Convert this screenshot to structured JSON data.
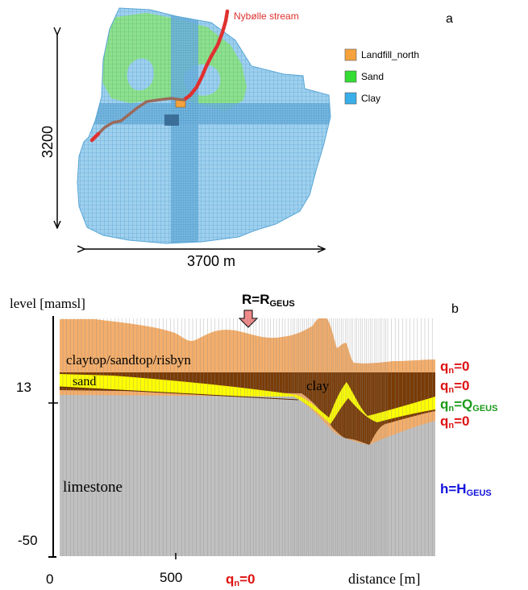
{
  "panel_a": {
    "label": "a",
    "stream_label": "Nybølle stream",
    "height_label": "3200",
    "width_label": "3700 m",
    "legend": [
      {
        "name": "Landfill_north",
        "color": "#f5a23c"
      },
      {
        "name": "Sand",
        "color": "#33dd33"
      },
      {
        "name": "Clay",
        "color": "#3aaee8"
      }
    ],
    "colors": {
      "clay_fill": "#9fd0ee",
      "clay_grid": "#4a9ccc",
      "sand_fill": "#8ee08e",
      "sand_grid": "#4fb86f",
      "stream": "#e03030",
      "stream_inner": "#9a6a5a",
      "landfill": "#f5a23c"
    }
  },
  "panel_b": {
    "label": "b",
    "y_axis_label": "level [mamsl]",
    "x_axis_label": "distance [m]",
    "y_ticks": [
      "13",
      "-50"
    ],
    "x_ticks": [
      "0",
      "500"
    ],
    "recharge_bc": {
      "text": "R=R",
      "sub": "GEUS"
    },
    "layer_labels": {
      "top": "claytop/sandtop/risbyn",
      "sand": "sand",
      "clay": "clay",
      "limestone": "limestone"
    },
    "boundary_conditions": [
      {
        "pre": "q",
        "sub": "n",
        "post": "=0",
        "color": "#dd1111"
      },
      {
        "pre": "q",
        "sub": "n",
        "post": "=0",
        "color": "#dd1111"
      },
      {
        "pre": "q",
        "sub": "n",
        "post": "=Q",
        "sub2": "GEUS",
        "color": "#1a9a1a"
      },
      {
        "pre": "q",
        "sub": "n",
        "post": "=0",
        "color": "#dd1111"
      }
    ],
    "head_bc": {
      "pre": "h=H",
      "sub": "GEUS",
      "color": "#1111dd"
    },
    "bottom_bc": {
      "pre": "q",
      "sub": "n",
      "post": "=0",
      "color": "#dd1111"
    },
    "colors": {
      "top": "#f4ae6b",
      "clay": "#7a3b06",
      "sand": "#ffff00",
      "limestone": "#c0c0c0",
      "grid": "#8a8a8a"
    }
  }
}
